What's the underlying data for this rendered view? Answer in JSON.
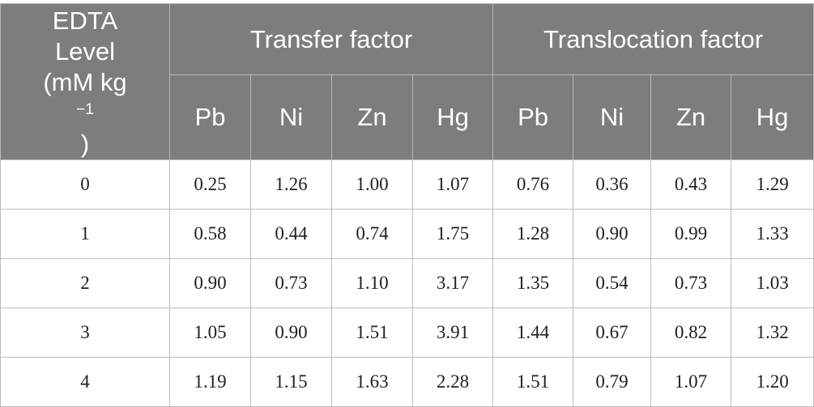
{
  "table": {
    "corner_header": {
      "line1": "EDTA",
      "line2": "Level",
      "line3_prefix": "(mM kg",
      "line3_sup": "−1",
      "line3_suffix": ")"
    },
    "group_headers": [
      "Transfer factor",
      "Translocation factor"
    ],
    "sub_headers": [
      "Pb",
      "Ni",
      "Zn",
      "Hg",
      "Pb",
      "Ni",
      "Zn",
      "Hg"
    ],
    "rows": [
      {
        "level": "0",
        "values": [
          "0.25",
          "1.26",
          "1.00",
          "1.07",
          "0.76",
          "0.36",
          "0.43",
          "1.29"
        ]
      },
      {
        "level": "1",
        "values": [
          "0.58",
          "0.44",
          "0.74",
          "1.75",
          "1.28",
          "0.90",
          "0.99",
          "1.33"
        ]
      },
      {
        "level": "2",
        "values": [
          "0.90",
          "0.73",
          "1.10",
          "3.17",
          "1.35",
          "0.54",
          "0.73",
          "1.03"
        ]
      },
      {
        "level": "3",
        "values": [
          "1.05",
          "0.90",
          "1.51",
          "3.91",
          "1.44",
          "0.67",
          "0.82",
          "1.32"
        ]
      },
      {
        "level": "4",
        "values": [
          "1.19",
          "1.15",
          "1.63",
          "2.28",
          "1.51",
          "0.79",
          "1.07",
          "1.20"
        ]
      }
    ],
    "colors": {
      "header_background": "#7c7d7e",
      "header_text": "#ffffff",
      "grid_line": "#bdbdbd",
      "body_text": "#1f1f1f"
    }
  }
}
